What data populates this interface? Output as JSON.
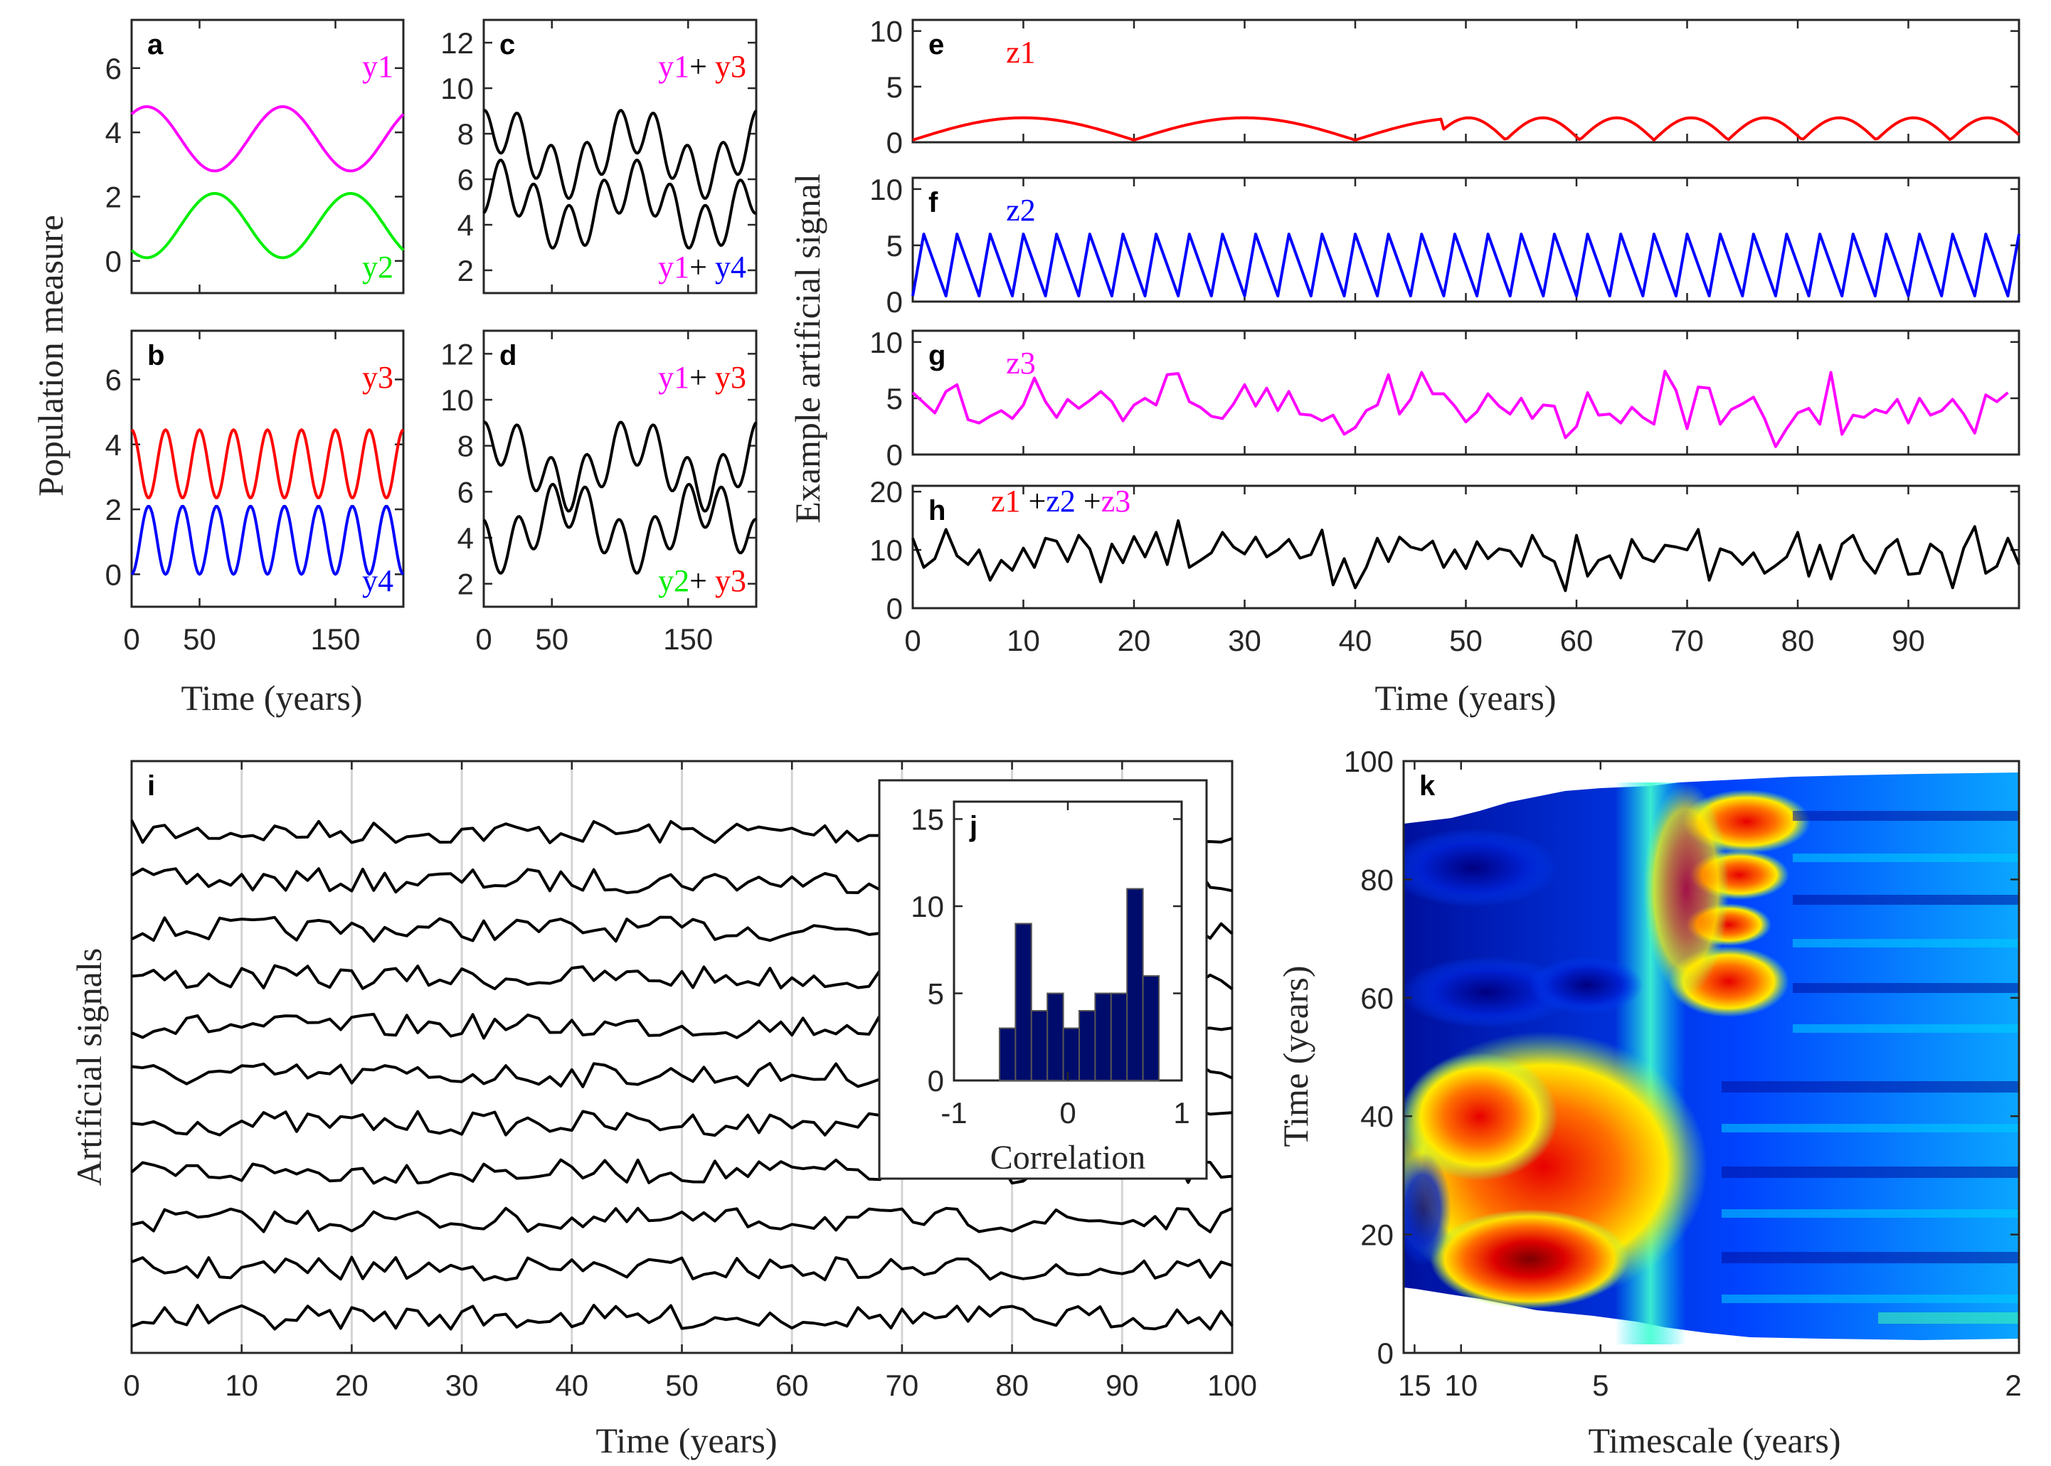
{
  "colors": {
    "magenta": "#ff00ff",
    "green": "#00ee00",
    "red": "#ff0000",
    "blue": "#0000ff",
    "black": "#000000",
    "hist_fill": "#000c6b",
    "frame": "#262626",
    "grid": "#d4d4d4"
  },
  "labels": {
    "ylabel_population": "Population measure",
    "ylabel_example": "Example artificial signal",
    "ylabel_artificial": "Artificial signals",
    "xlabel_time": "Time (years)",
    "xlabel_timescale": "Timescale (years)",
    "xlabel_correlation": "Correlation",
    "ylabel_time_k": "Time (years)"
  },
  "chart_data": [
    {
      "panel": "a",
      "type": "line",
      "xlim": [
        0,
        200
      ],
      "ylim": [
        -1,
        7.5
      ],
      "xticks": [
        "0",
        "50",
        "150"
      ],
      "yticks": [
        "0",
        "2",
        "4",
        "6"
      ],
      "series": [
        {
          "name": "y1",
          "color": "magenta",
          "kind": "sine",
          "mean": 3.8,
          "amp": 1.0,
          "period": 100,
          "phase_deg": 50
        },
        {
          "name": "y2",
          "color": "green",
          "kind": "sine",
          "mean": 1.1,
          "amp": 1.0,
          "period": 100,
          "phase_deg": 230
        }
      ]
    },
    {
      "panel": "b",
      "type": "line",
      "xlim": [
        0,
        200
      ],
      "ylim": [
        -1,
        7.5
      ],
      "xticks": [
        "0",
        "50",
        "150"
      ],
      "yticks": [
        "0",
        "2",
        "4",
        "6"
      ],
      "series": [
        {
          "name": "y3",
          "color": "red",
          "kind": "sine",
          "mean": 3.4,
          "amp": 1.05,
          "period": 25,
          "phase_deg": 90
        },
        {
          "name": "y4",
          "color": "blue",
          "kind": "sine",
          "mean": 1.05,
          "amp": 1.05,
          "period": 25,
          "phase_deg": 270
        }
      ]
    },
    {
      "panel": "c",
      "type": "line",
      "xlim": [
        0,
        200
      ],
      "ylim": [
        1,
        13
      ],
      "xticks": [
        "0",
        "50",
        "150"
      ],
      "yticks": [
        "2",
        "4",
        "6",
        "8",
        "10",
        "12"
      ],
      "series": [
        {
          "label_parts": [
            [
              "y1",
              "magenta"
            ],
            [
              "+ ",
              "black"
            ],
            [
              "y3",
              "red"
            ]
          ],
          "color": "black",
          "kind": "sum",
          "offset": 0.0,
          "components": [
            {
              "amp": 1.0,
              "period": 100,
              "phase_deg": 50
            },
            {
              "amp": 1.05,
              "period": 25,
              "phase_deg": 90
            }
          ],
          "mean": 7.2
        },
        {
          "label_parts": [
            [
              "y1",
              "magenta"
            ],
            [
              "+ ",
              "black"
            ],
            [
              "y4",
              "blue"
            ]
          ],
          "color": "black",
          "kind": "sum",
          "offset": 0.0,
          "components": [
            {
              "amp": 1.0,
              "period": 100,
              "phase_deg": 50
            },
            {
              "amp": 1.05,
              "period": 25,
              "phase_deg": 270
            }
          ],
          "mean": 4.8
        }
      ]
    },
    {
      "panel": "d",
      "type": "line",
      "xlim": [
        0,
        200
      ],
      "ylim": [
        1,
        13
      ],
      "xticks": [
        "0",
        "50",
        "150"
      ],
      "yticks": [
        "2",
        "4",
        "6",
        "8",
        "10",
        "12"
      ],
      "series": [
        {
          "label_parts": [
            [
              "y1",
              "magenta"
            ],
            [
              "+ ",
              "black"
            ],
            [
              "y3",
              "red"
            ]
          ],
          "color": "black",
          "kind": "sum",
          "components": [
            {
              "amp": 1.0,
              "period": 100,
              "phase_deg": 50
            },
            {
              "amp": 1.05,
              "period": 25,
              "phase_deg": 90
            }
          ],
          "mean": 7.2
        },
        {
          "label_parts": [
            [
              "y2",
              "green"
            ],
            [
              "+ ",
              "black"
            ],
            [
              "y3",
              "red"
            ]
          ],
          "color": "black",
          "kind": "sum",
          "components": [
            {
              "amp": 1.0,
              "period": 100,
              "phase_deg": 230
            },
            {
              "amp": 1.05,
              "period": 25,
              "phase_deg": 90
            }
          ],
          "mean": 4.5
        }
      ]
    },
    {
      "panel": "e",
      "type": "line",
      "xlim": [
        0,
        100
      ],
      "ylim": [
        0,
        11
      ],
      "yticks": [
        "0",
        "5",
        "10"
      ],
      "series": [
        {
          "name": "z1",
          "color": "red",
          "kind": "abs_sine",
          "amp": 2.0,
          "period_first": 20,
          "period_second": 6.7,
          "split": 48
        }
      ]
    },
    {
      "panel": "f",
      "type": "line",
      "xlim": [
        0,
        100
      ],
      "ylim": [
        0,
        11
      ],
      "yticks": [
        "0",
        "5",
        "10"
      ],
      "series": [
        {
          "name": "z2",
          "color": "blue",
          "kind": "saw",
          "low": 0.5,
          "high": 6.0,
          "period": 3
        }
      ]
    },
    {
      "panel": "g",
      "type": "line",
      "xlim": [
        0,
        100
      ],
      "ylim": [
        0,
        11
      ],
      "yticks": [
        "0",
        "5",
        "10"
      ],
      "series": [
        {
          "name": "z3",
          "color": "magenta",
          "kind": "random",
          "values": [
            5.5,
            4.6,
            3.7,
            5.6,
            6.2,
            3.1,
            2.8,
            3.4,
            3.9,
            3.2,
            4.4,
            6.8,
            4.7,
            3.3,
            4.9,
            4.1,
            4.8,
            5.6,
            4.7,
            3.0,
            4.4,
            5.0,
            4.4,
            7.1,
            7.2,
            4.7,
            4.2,
            3.4,
            3.2,
            4.5,
            6.2,
            4.3,
            5.9,
            3.9,
            5.6,
            3.6,
            3.5,
            3.0,
            3.5,
            1.8,
            2.4,
            3.9,
            4.4,
            7.1,
            3.6,
            4.9,
            7.3,
            5.4,
            5.4,
            4.3,
            2.9,
            3.8,
            5.4,
            4.3,
            3.6,
            5.0,
            3.2,
            4.4,
            4.3,
            1.5,
            2.5,
            5.5,
            3.5,
            3.6,
            2.8,
            4.2,
            3.3,
            2.7,
            7.4,
            5.7,
            2.3,
            6.0,
            5.9,
            2.7,
            4.0,
            4.5,
            5.1,
            3.2,
            0.7,
            2.3,
            3.7,
            4.1,
            2.7,
            7.3,
            1.8,
            3.5,
            3.3,
            4.0,
            3.7,
            4.9,
            2.8,
            5.0,
            3.5,
            3.9,
            4.9,
            3.6,
            1.9,
            5.3,
            4.7,
            5.5
          ]
        }
      ]
    },
    {
      "panel": "h",
      "type": "line",
      "xlim": [
        0,
        100
      ],
      "ylim": [
        0,
        21
      ],
      "xticks": [
        "0",
        "10",
        "20",
        "30",
        "40",
        "50",
        "60",
        "70",
        "80",
        "90"
      ],
      "yticks": [
        "0",
        "10",
        "20"
      ],
      "label_parts": [
        [
          "z1",
          "red"
        ],
        [
          " +",
          "black"
        ],
        [
          "z2",
          "blue"
        ],
        [
          " +",
          "black"
        ],
        [
          "z3",
          "magenta"
        ]
      ],
      "series": [
        {
          "color": "black",
          "kind": "random",
          "values": [
            12.0,
            7.0,
            8.5,
            13.5,
            9.0,
            7.5,
            10.0,
            4.8,
            8.2,
            6.5,
            10.3,
            7.0,
            12.0,
            11.5,
            8.0,
            12.5,
            10.2,
            4.5,
            11.0,
            7.8,
            12.3,
            8.8,
            13.0,
            7.5,
            15.0,
            7.0,
            8.2,
            9.5,
            13.0,
            10.5,
            9.3,
            12.2,
            8.8,
            10.0,
            11.8,
            8.6,
            9.2,
            13.4,
            4.0,
            8.5,
            3.5,
            7.0,
            12.0,
            8.0,
            12.2,
            10.5,
            10.0,
            11.5,
            7.0,
            10.0,
            6.8,
            11.4,
            8.5,
            10.2,
            9.8,
            7.2,
            12.5,
            9.0,
            8.0,
            3.0,
            12.5,
            5.5,
            8.2,
            9.0,
            5.2,
            11.8,
            8.7,
            8.0,
            10.8,
            10.5,
            10.0,
            13.5,
            4.8,
            10.2,
            9.5,
            7.5,
            9.5,
            6.0,
            7.3,
            8.8,
            13.0,
            5.5,
            10.8,
            5.0,
            11.0,
            12.5,
            8.3,
            6.0,
            10.2,
            11.8,
            5.8,
            6.0,
            11.0,
            9.5,
            3.5,
            10.3,
            14.0,
            6.0,
            7.2,
            12.0,
            7.5
          ]
        }
      ]
    },
    {
      "panel": "i",
      "type": "line",
      "xlim": [
        0,
        100
      ],
      "n_signals": 11,
      "xticks": [
        "0",
        "10",
        "20",
        "30",
        "40",
        "50",
        "60",
        "70",
        "80",
        "90",
        "100"
      ],
      "grid_x": [
        10,
        20,
        30,
        40,
        50,
        60,
        70,
        80,
        90
      ],
      "note_signals": "eleven stacked noisy signals"
    },
    {
      "panel": "j",
      "type": "bar",
      "xlim": [
        -1,
        1
      ],
      "ylim": [
        0,
        16
      ],
      "xticks": [
        "-1",
        "0",
        "1"
      ],
      "yticks": [
        "0",
        "5",
        "10",
        "15"
      ],
      "bin_edges": [
        -0.6,
        -0.46,
        -0.32,
        -0.18,
        -0.04,
        0.1,
        0.24,
        0.38,
        0.52,
        0.66,
        0.8
      ],
      "values": [
        3,
        9,
        4,
        5,
        3,
        4,
        5,
        5,
        11,
        6
      ]
    },
    {
      "panel": "k",
      "type": "heatmap",
      "x_ticks": [
        "15",
        "10",
        "5",
        "2"
      ],
      "y_ticks": [
        "0",
        "20",
        "40",
        "60",
        "80",
        "100"
      ],
      "xlim_timescale": [
        17,
        2
      ],
      "ylim": [
        0,
        100
      ]
    }
  ],
  "panel_letters": [
    "a",
    "b",
    "c",
    "d",
    "e",
    "f",
    "g",
    "h",
    "i",
    "j",
    "k"
  ]
}
